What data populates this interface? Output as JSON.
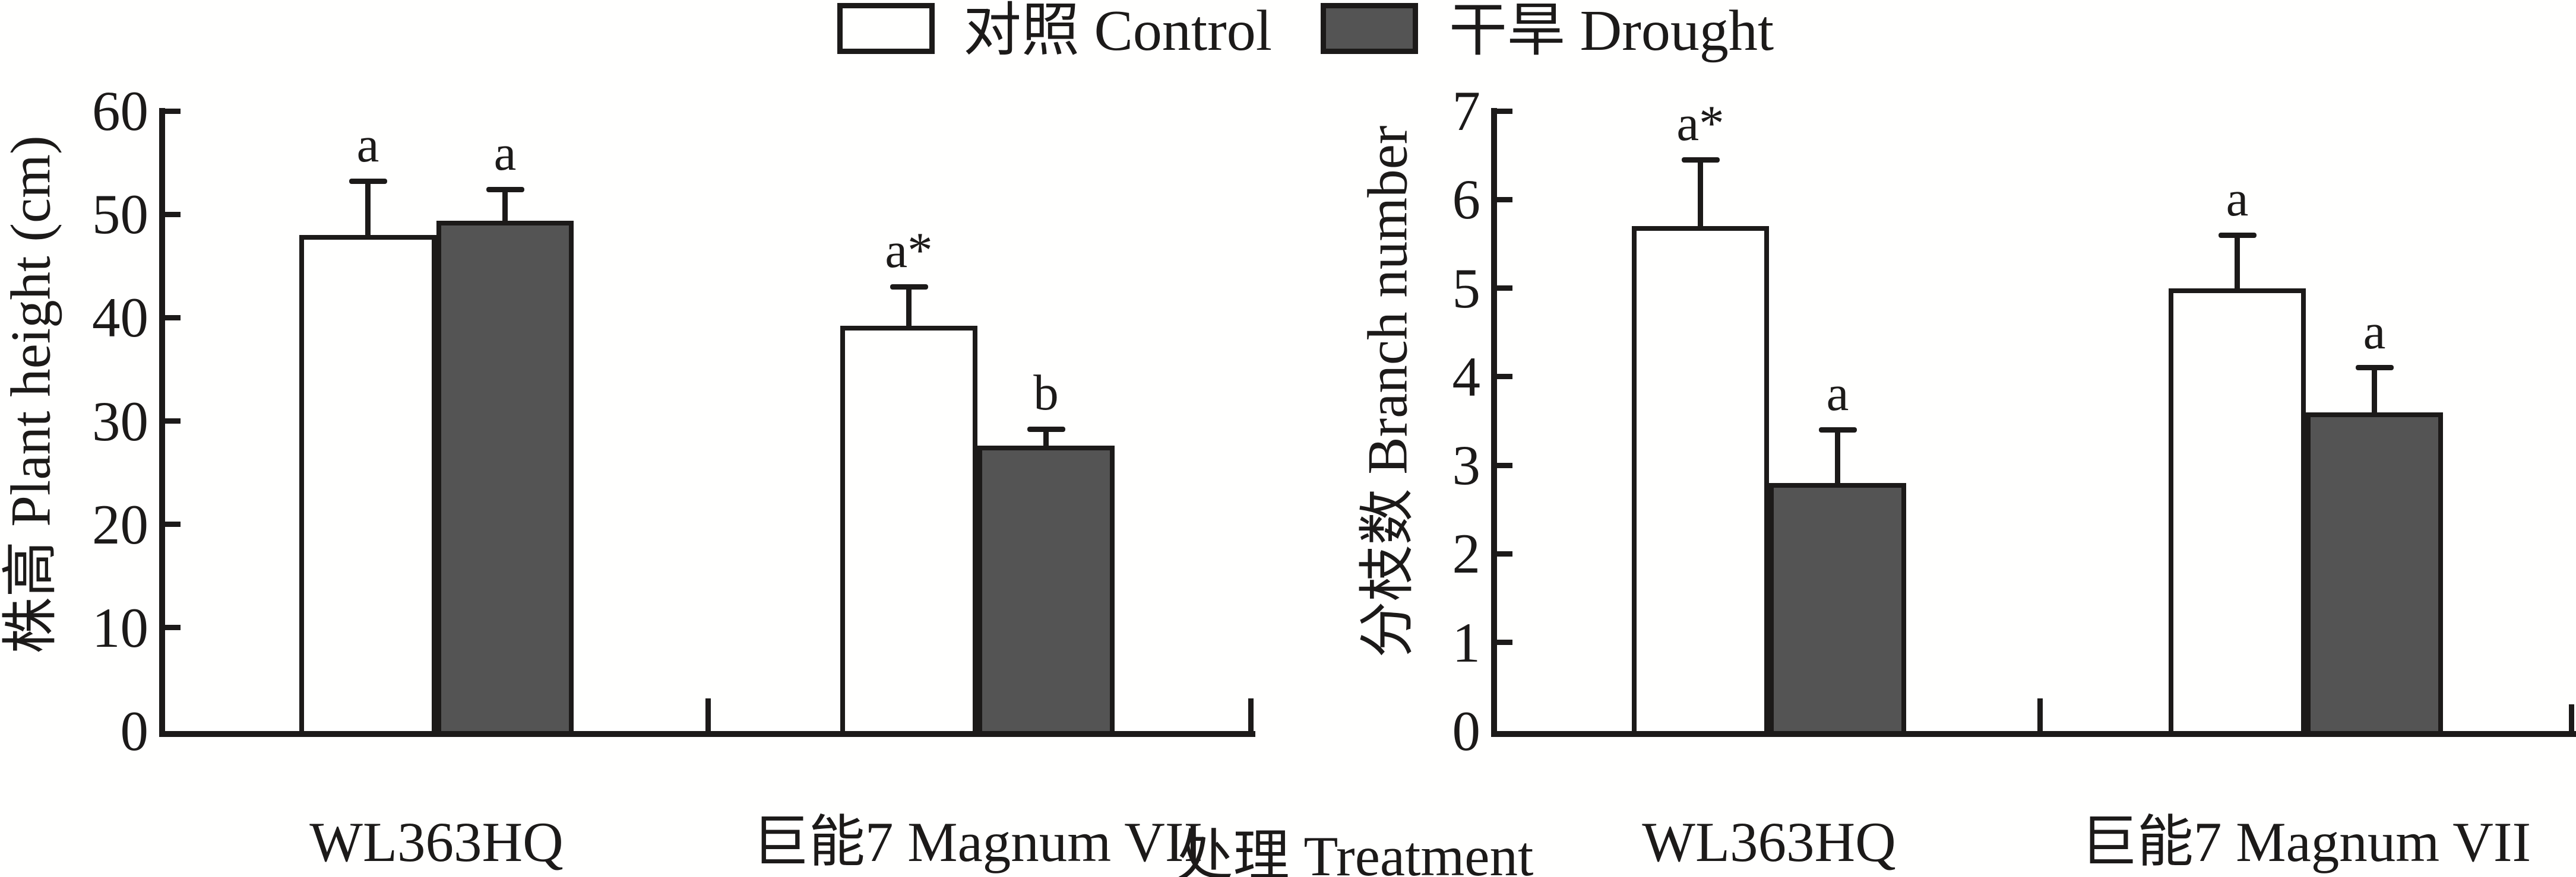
{
  "colors": {
    "line": "#1c1a19",
    "control_fill": "#fffffe",
    "drought_fill": "#545454",
    "background": "#fffffe"
  },
  "legend": {
    "items": [
      {
        "label": "对照 Control",
        "color": "#fffffe"
      },
      {
        "label": "干旱 Drought",
        "color": "#545454"
      }
    ]
  },
  "xlabel": "处理 Treatment",
  "chart_data": [
    {
      "type": "bar",
      "title": "",
      "xlabel": "处理 Treatment",
      "ylabel": "株高 Plant height (cm)",
      "categories": [
        "WL363HQ",
        "巨能7 Magnum VII"
      ],
      "series": [
        {
          "name": "对照 Control",
          "values": [
            48.0,
            39.2
          ],
          "errors": [
            5.2,
            3.8
          ],
          "letters": [
            "a",
            "a*"
          ]
        },
        {
          "name": "干旱 Drought",
          "values": [
            49.4,
            27.6
          ],
          "errors": [
            3.0,
            1.6
          ],
          "letters": [
            "a",
            "b"
          ]
        }
      ],
      "ylim": [
        0,
        60
      ],
      "yticks": [
        0,
        10,
        20,
        30,
        40,
        50,
        60
      ],
      "grid": false,
      "legend_position": "top-center",
      "error_bars": "upper-only"
    },
    {
      "type": "bar",
      "title": "",
      "xlabel": "处理 Treatment",
      "ylabel": "分枝数 Branch number",
      "categories": [
        "WL363HQ",
        "巨能7 Magnum VII"
      ],
      "series": [
        {
          "name": "对照 Control",
          "values": [
            5.7,
            5.0
          ],
          "errors": [
            0.75,
            0.6
          ],
          "letters": [
            "a*",
            "a"
          ]
        },
        {
          "name": "干旱 Drought",
          "values": [
            2.8,
            3.6
          ],
          "errors": [
            0.6,
            0.5
          ],
          "letters": [
            "a",
            "a"
          ]
        }
      ],
      "ylim": [
        0,
        7
      ],
      "yticks": [
        0,
        1,
        2,
        3,
        4,
        5,
        6,
        7
      ],
      "grid": false,
      "legend_position": "top-center",
      "error_bars": "upper-only"
    }
  ]
}
